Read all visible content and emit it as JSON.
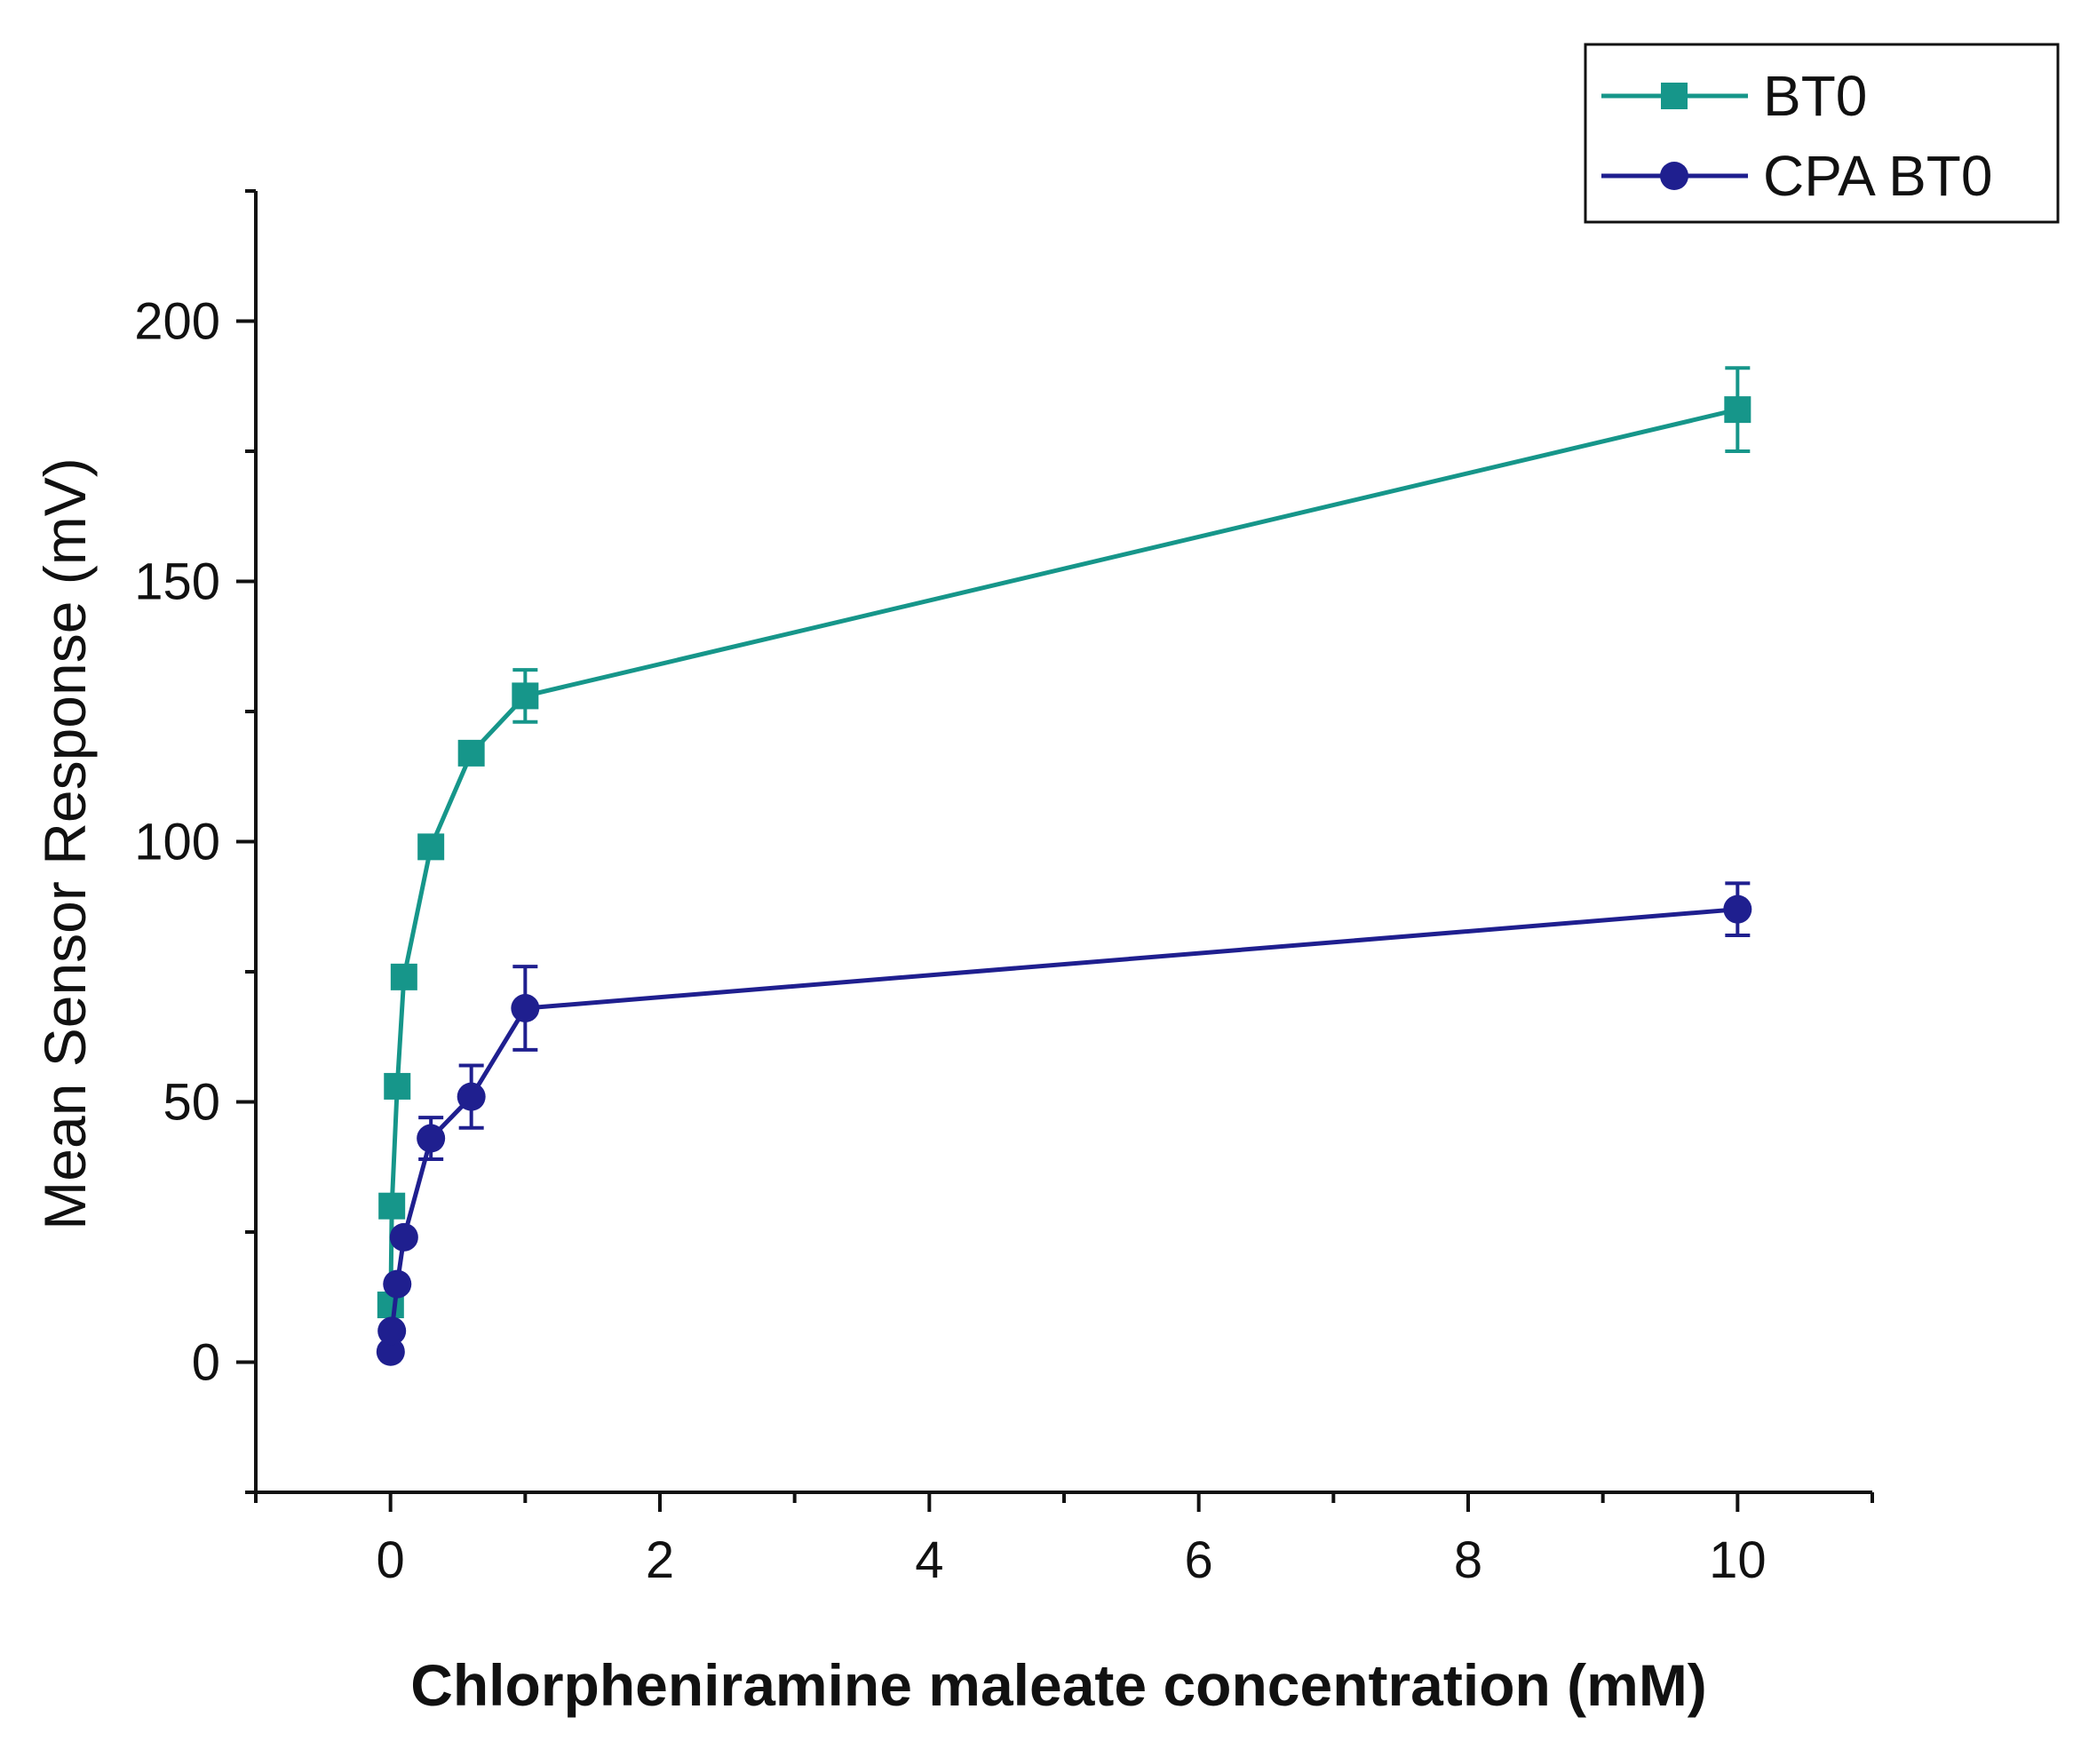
{
  "chart_data": {
    "type": "line",
    "title": "",
    "xlabel": "Chlorpheniramine maleate concentration (mM)",
    "ylabel": "Mean Sensor Response (mV)",
    "xlim": [
      -1,
      11
    ],
    "ylim": [
      -25,
      225
    ],
    "x_ticks": [
      0,
      2,
      4,
      6,
      8,
      10
    ],
    "x_tick_labels": [
      "0",
      "2",
      "4",
      "6",
      "8",
      "10"
    ],
    "y_ticks": [
      0,
      50,
      100,
      150,
      200
    ],
    "y_tick_labels": [
      "0",
      "50",
      "100",
      "150",
      "200"
    ],
    "grid": false,
    "legend_position": "top-right",
    "series": [
      {
        "name": "BT0",
        "color": "#16968a",
        "marker": "square",
        "points": [
          {
            "x": 0.001,
            "y": 11,
            "err": 1
          },
          {
            "x": 0.01,
            "y": 30,
            "err": 1
          },
          {
            "x": 0.05,
            "y": 53,
            "err": 1
          },
          {
            "x": 0.1,
            "y": 74,
            "err": 1
          },
          {
            "x": 0.3,
            "y": 99,
            "err": 1
          },
          {
            "x": 0.6,
            "y": 117,
            "err": 2
          },
          {
            "x": 1,
            "y": 128,
            "err": 5
          },
          {
            "x": 10,
            "y": 183,
            "err": 8
          }
        ]
      },
      {
        "name": "CPA BT0",
        "color": "#1f1f8f",
        "marker": "circle",
        "points": [
          {
            "x": 0.001,
            "y": 2,
            "err": 1
          },
          {
            "x": 0.01,
            "y": 6,
            "err": 1
          },
          {
            "x": 0.05,
            "y": 15,
            "err": 1
          },
          {
            "x": 0.1,
            "y": 24,
            "err": 1
          },
          {
            "x": 0.3,
            "y": 43,
            "err": 4
          },
          {
            "x": 0.6,
            "y": 51,
            "err": 6
          },
          {
            "x": 1,
            "y": 68,
            "err": 8
          },
          {
            "x": 10,
            "y": 87,
            "err": 5
          }
        ]
      }
    ]
  }
}
